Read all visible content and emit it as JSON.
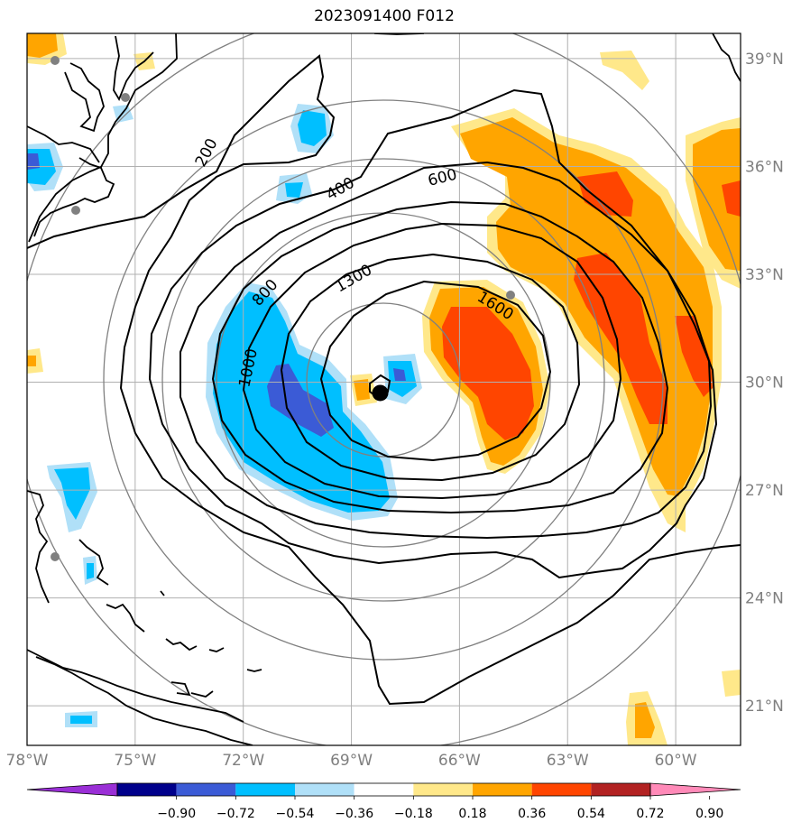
{
  "title": "2023091400 F012",
  "colors": {
    "range_rings": "#808080",
    "gridlines": "#b0b0b0",
    "coastline": "#000000",
    "contour": "#000000",
    "station": "#808080",
    "storm_center": "#000000"
  },
  "map": {
    "lon_range": [
      -78.0,
      -58.2
    ],
    "lat_range": [
      19.9,
      39.7
    ],
    "lon_ticks": [
      "78°W",
      "75°W",
      "72°W",
      "69°W",
      "66°W",
      "63°W",
      "60°W"
    ],
    "lat_ticks": [
      "39°N",
      "36°N",
      "33°N",
      "30°N",
      "27°N",
      "24°N",
      "21°N"
    ],
    "storm_center": {
      "lon": -68.2,
      "lat": 29.7
    },
    "contour_labels": [
      "200",
      "400",
      "600",
      "800",
      "1000",
      "1300",
      "1600"
    ],
    "colorbar": {
      "ticks": [
        "−0.90",
        "−0.72",
        "−0.54",
        "−0.36",
        "−0.18",
        "0.18",
        "0.36",
        "0.54",
        "0.72",
        "0.90"
      ],
      "colors": [
        "#9a2fd6",
        "#00008b",
        "#3b5bd6",
        "#00bfff",
        "#b0e0f8",
        "#ffffff",
        "#ffe88a",
        "#ffa500",
        "#ff4500",
        "#b22222",
        "#ff8ab8"
      ]
    }
  }
}
